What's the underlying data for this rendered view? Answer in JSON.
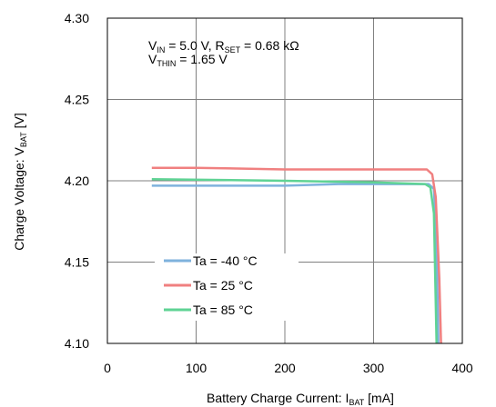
{
  "chart_data": {
    "type": "line",
    "xlim": [
      0,
      400
    ],
    "ylim": [
      4.1,
      4.3
    ],
    "x_ticks": [
      "0",
      "100",
      "200",
      "300",
      "400"
    ],
    "y_ticks": [
      "4.10",
      "4.15",
      "4.20",
      "4.25",
      "4.30"
    ],
    "grid": true,
    "xlabel": {
      "main": "Battery Charge Current: I",
      "sub": "BAT",
      "unit": " [mA]"
    },
    "ylabel": {
      "main": "Charge Voltage: V",
      "sub": "BAT",
      "unit": " [V]"
    },
    "annotation": {
      "line1": {
        "a": "V",
        "a_sub": "IN",
        "b": " = 5.0 V, R",
        "b_sub": "SET",
        "c": " = 0.68 kΩ"
      },
      "line2": {
        "a": "V",
        "a_sub": "THIN",
        "b": " = 1.65 V"
      }
    },
    "legend_position": "bottom-left",
    "series": [
      {
        "name": "Ta =  -40 °C",
        "color": "#7fb2dd",
        "points": [
          [
            50,
            4.197
          ],
          [
            200,
            4.197
          ],
          [
            260,
            4.198
          ],
          [
            362,
            4.198
          ],
          [
            368,
            4.195
          ],
          [
            371,
            4.16
          ],
          [
            373,
            4.1
          ]
        ]
      },
      {
        "name": "Ta =  25 °C",
        "color": "#f08080",
        "points": [
          [
            50,
            4.208
          ],
          [
            100,
            4.208
          ],
          [
            200,
            4.207
          ],
          [
            300,
            4.207
          ],
          [
            360,
            4.207
          ],
          [
            366,
            4.204
          ],
          [
            370,
            4.19
          ],
          [
            374,
            4.14
          ],
          [
            376,
            4.1
          ]
        ]
      },
      {
        "name": "Ta =  85 °C",
        "color": "#5fd394",
        "points": [
          [
            50,
            4.201
          ],
          [
            200,
            4.2
          ],
          [
            300,
            4.199
          ],
          [
            358,
            4.198
          ],
          [
            364,
            4.196
          ],
          [
            368,
            4.18
          ],
          [
            371,
            4.1
          ]
        ]
      }
    ]
  }
}
